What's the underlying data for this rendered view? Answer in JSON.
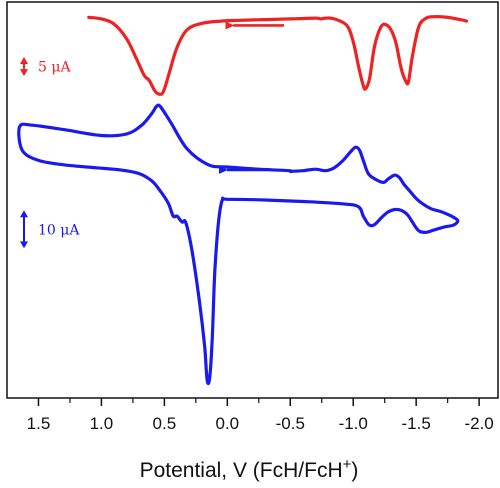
{
  "chart_data": {
    "type": "line",
    "title": "",
    "xlabel": "Potential, V (FcH/FcH",
    "xlabel_superscript": "+",
    "ylabel": "",
    "xlim": [
      1.75,
      -2.15
    ],
    "x_reversed": true,
    "x_ticks": [
      1.5,
      1.0,
      0.5,
      0.0,
      -0.5,
      -1.0,
      -1.5,
      -2.0
    ],
    "x_tick_labels": [
      "1.5",
      "1.0",
      "0.5",
      "0.0",
      "-0.5",
      "-1.0",
      "-1.5",
      "-2.0"
    ],
    "y_units": "µA",
    "ylim": [
      -8,
      19
    ],
    "grid": false,
    "legend": "none",
    "scale_bars": [
      {
        "label": "5 μA",
        "color": "#ee2222",
        "y_start": 13.95,
        "y_end": 15.25
      },
      {
        "label": "10 μA",
        "color": "#1a1aee",
        "y_start": 2.2,
        "y_end": 4.8
      }
    ],
    "direction_arrows": [
      {
        "color": "#ee2222",
        "x_from": -0.45,
        "x_to": 0.0,
        "y": 17.4
      },
      {
        "color": "#1a1aee",
        "x_from": -0.4,
        "x_to": 0.05,
        "y": 7.55
      }
    ],
    "series": [
      {
        "color": "#ee2222",
        "x": [
          1.1,
          1.0,
          0.9,
          0.8,
          0.72,
          0.66,
          0.62,
          0.58,
          0.55,
          0.51,
          0.46,
          0.4,
          0.32,
          0.2,
          0.05,
          -0.1,
          -0.3,
          -0.5,
          -0.7,
          -0.74,
          -0.78,
          -0.85,
          -0.95,
          -1.0,
          -1.04,
          -1.08,
          -1.1,
          -1.13,
          -1.17,
          -1.22,
          -1.26,
          -1.3,
          -1.34,
          -1.38,
          -1.42,
          -1.44,
          -1.47,
          -1.52,
          -1.58,
          -1.65,
          -1.75,
          -1.85,
          -1.9
        ],
        "y": [
          17.95,
          17.85,
          17.5,
          16.5,
          15.1,
          14.0,
          13.65,
          13.0,
          12.75,
          12.85,
          14.2,
          15.9,
          17.1,
          17.55,
          17.7,
          17.75,
          17.8,
          17.85,
          17.9,
          17.85,
          17.9,
          17.85,
          17.4,
          16.3,
          14.7,
          13.3,
          13.1,
          13.8,
          16.0,
          17.3,
          17.45,
          17.1,
          16.2,
          14.5,
          13.55,
          13.6,
          15.3,
          17.3,
          17.9,
          18.0,
          17.95,
          17.8,
          17.7
        ]
      },
      {
        "color": "#1a1aee",
        "x": [
          -0.5,
          -0.6,
          -0.7,
          -0.78,
          -0.85,
          -0.92,
          -0.98,
          -1.02,
          -1.05,
          -1.08,
          -1.12,
          -1.18,
          -1.24,
          -1.28,
          -1.33,
          -1.37,
          -1.4,
          -1.45,
          -1.5,
          -1.55,
          -1.62,
          -1.7,
          -1.78,
          -1.83,
          -1.8,
          -1.72,
          -1.64,
          -1.58,
          -1.53,
          -1.5,
          -1.47,
          -1.43,
          -1.38,
          -1.33,
          -1.28,
          -1.23,
          -1.18,
          -1.15,
          -1.12,
          -1.08,
          -1.04,
          -0.9,
          -0.6,
          -0.3,
          0.0,
          0.04,
          0.07,
          0.1,
          0.12,
          0.14,
          0.16,
          0.18,
          0.22,
          0.28,
          0.33,
          0.36,
          0.4,
          0.43,
          0.47,
          0.54,
          0.6,
          0.7,
          0.85,
          1.05,
          1.3,
          1.5,
          1.63,
          1.65,
          1.55,
          1.3,
          1.0,
          0.8,
          0.68,
          0.6,
          0.56,
          0.53,
          0.45,
          0.32,
          0.15,
          0.0,
          -0.25,
          -0.5
        ],
        "y": [
          7.45,
          7.5,
          7.6,
          7.5,
          7.7,
          8.2,
          8.8,
          9.1,
          8.9,
          8.2,
          7.3,
          6.9,
          6.7,
          6.95,
          7.2,
          7.0,
          6.6,
          6.1,
          5.6,
          5.25,
          4.9,
          4.7,
          4.4,
          4.1,
          3.8,
          3.65,
          3.45,
          3.3,
          3.35,
          3.6,
          4.0,
          4.5,
          4.8,
          4.85,
          4.7,
          4.35,
          3.9,
          3.75,
          3.85,
          4.4,
          5.05,
          5.25,
          5.4,
          5.5,
          5.55,
          5.5,
          4.0,
          0.5,
          -4.0,
          -6.6,
          -6.8,
          -4.5,
          -1.5,
          2.0,
          3.95,
          4.0,
          4.4,
          4.4,
          5.3,
          6.2,
          6.8,
          7.3,
          7.55,
          7.7,
          7.9,
          8.2,
          8.9,
          10.5,
          10.6,
          10.3,
          9.9,
          10.0,
          10.6,
          11.4,
          11.9,
          11.85,
          10.8,
          9.0,
          7.9,
          7.75,
          7.6,
          7.5
        ]
      }
    ]
  }
}
